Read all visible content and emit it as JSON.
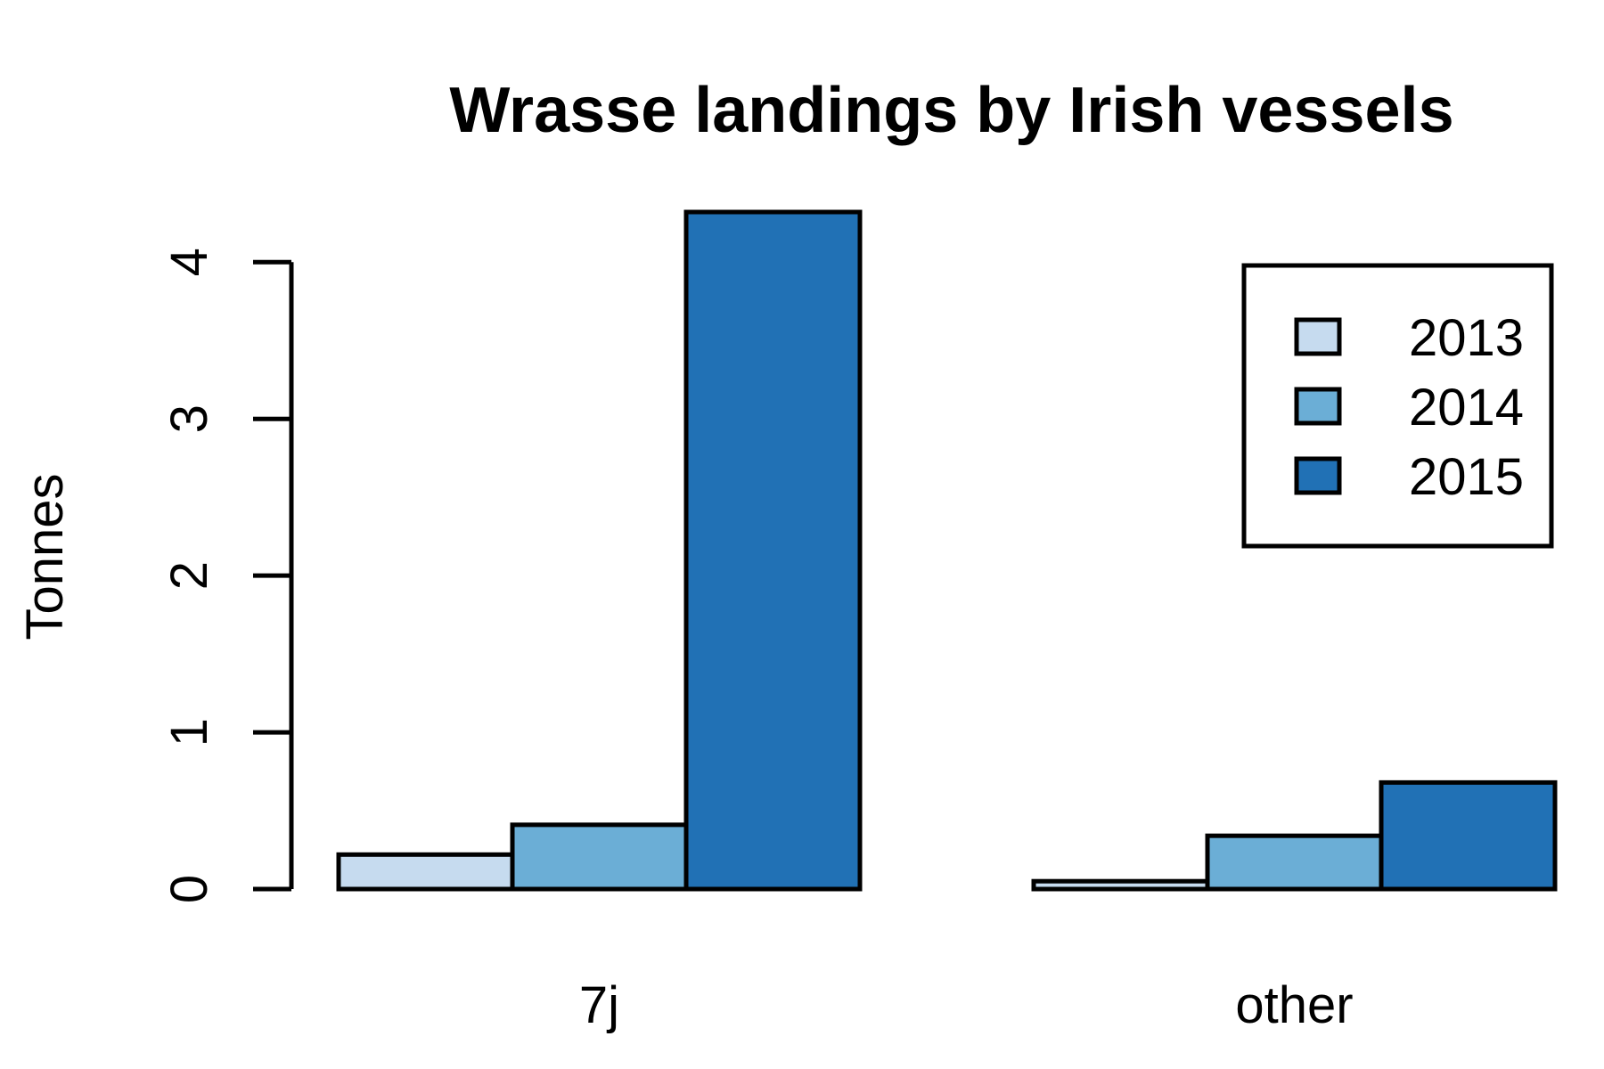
{
  "chart_data": {
    "type": "bar",
    "title": "Wrasse landings by Irish vessels",
    "xlabel": "",
    "ylabel": "Tonnes",
    "categories": [
      "7j",
      "other"
    ],
    "series": [
      {
        "name": "2013",
        "color": "#c6dbef",
        "values": [
          0.22,
          0.05
        ]
      },
      {
        "name": "2014",
        "color": "#6baed6",
        "values": [
          0.41,
          0.34
        ]
      },
      {
        "name": "2015",
        "color": "#2171b5",
        "values": [
          4.32,
          0.68
        ]
      }
    ],
    "yticks": [
      0,
      1,
      2,
      3,
      4
    ],
    "ytick_labels": [
      "0",
      "1",
      "2",
      "3",
      "4"
    ],
    "ylim": [
      0,
      4.32
    ],
    "grid": false,
    "legend": "top-right",
    "bar_style": "grouped",
    "border_color": "#000000"
  }
}
